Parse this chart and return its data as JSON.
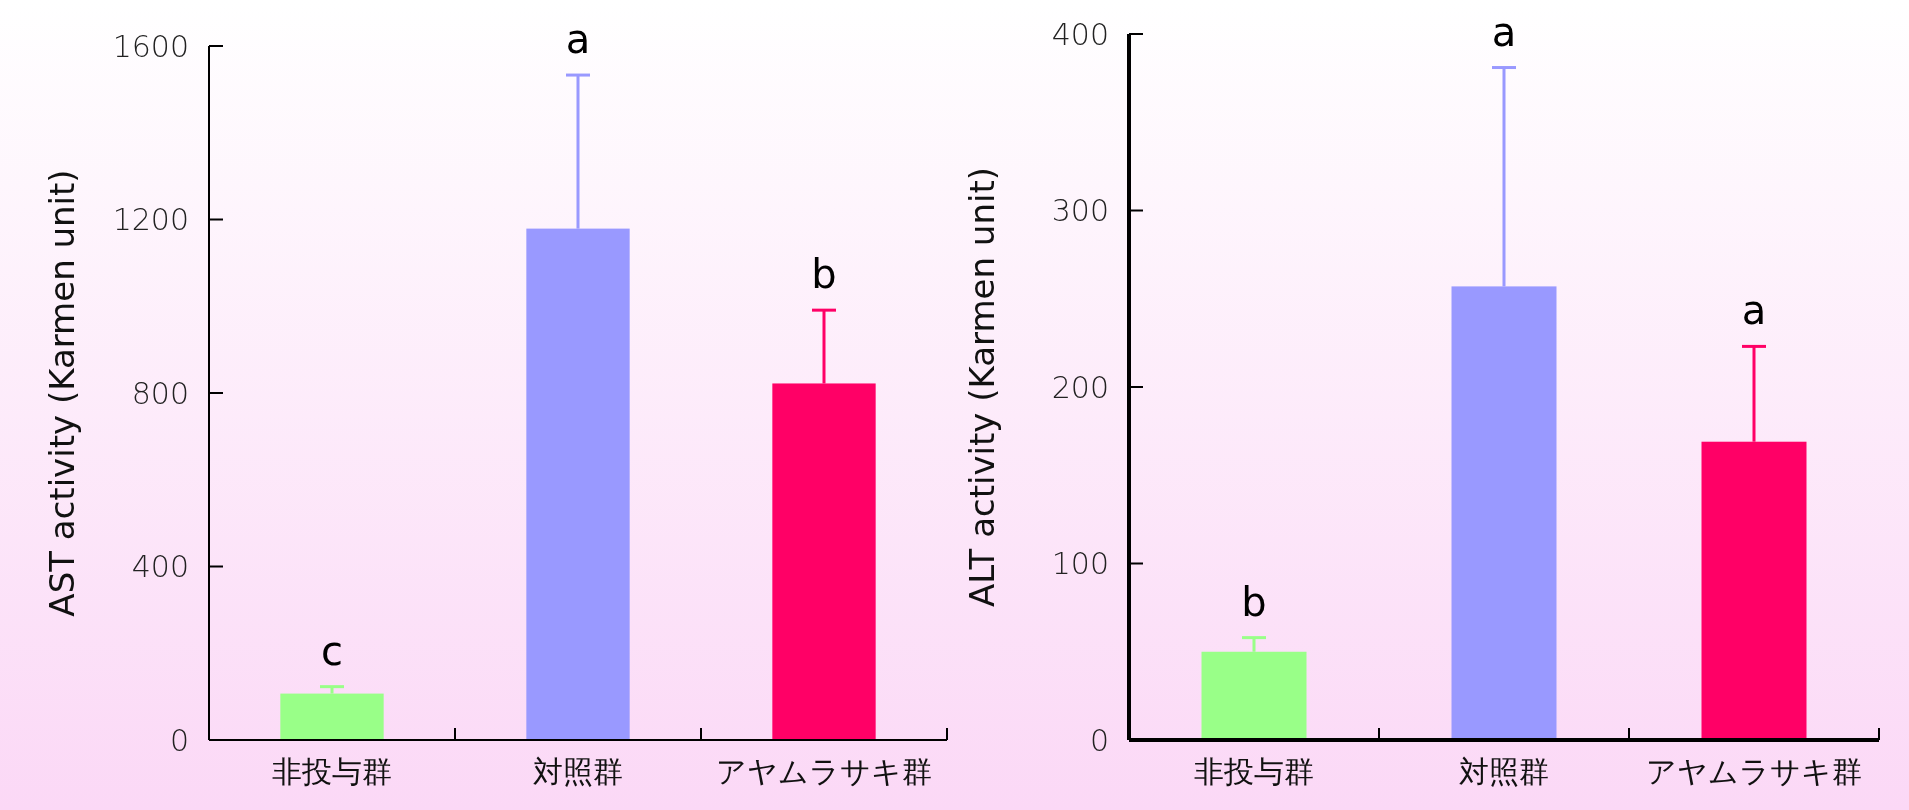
{
  "chart_data": [
    {
      "type": "bar",
      "ylabel": "AST activity (Karmen unit)",
      "categories": [
        "非投与群",
        "対照群",
        "アヤムラサキ群"
      ],
      "values": [
        107,
        1179,
        822
      ],
      "colors": [
        "#99ff88",
        "#9999ff",
        "#ff0066"
      ],
      "errors": [
        [
          107,
          123
        ],
        [
          1179,
          1533
        ],
        [
          822,
          991
        ]
      ],
      "ylim": [
        0,
        1600
      ],
      "yticks": [
        0,
        400,
        800,
        1200,
        1600
      ],
      "annotations": [
        "c",
        "a",
        "b"
      ]
    },
    {
      "type": "bar",
      "ylabel": "ALT activity (Karmen unit)",
      "categories": [
        "非投与群",
        "対照群",
        "アヤムラサキ群"
      ],
      "values": [
        50,
        257,
        169
      ],
      "colors": [
        "#99ff88",
        "#9999ff",
        "#ff0066"
      ],
      "errors": [
        [
          50,
          58
        ],
        [
          257,
          381
        ],
        [
          169,
          223
        ]
      ],
      "ylim": [
        0,
        400
      ],
      "yticks": [
        0,
        100,
        200,
        300,
        400
      ],
      "annotations": [
        "b",
        "a",
        "a"
      ]
    }
  ]
}
